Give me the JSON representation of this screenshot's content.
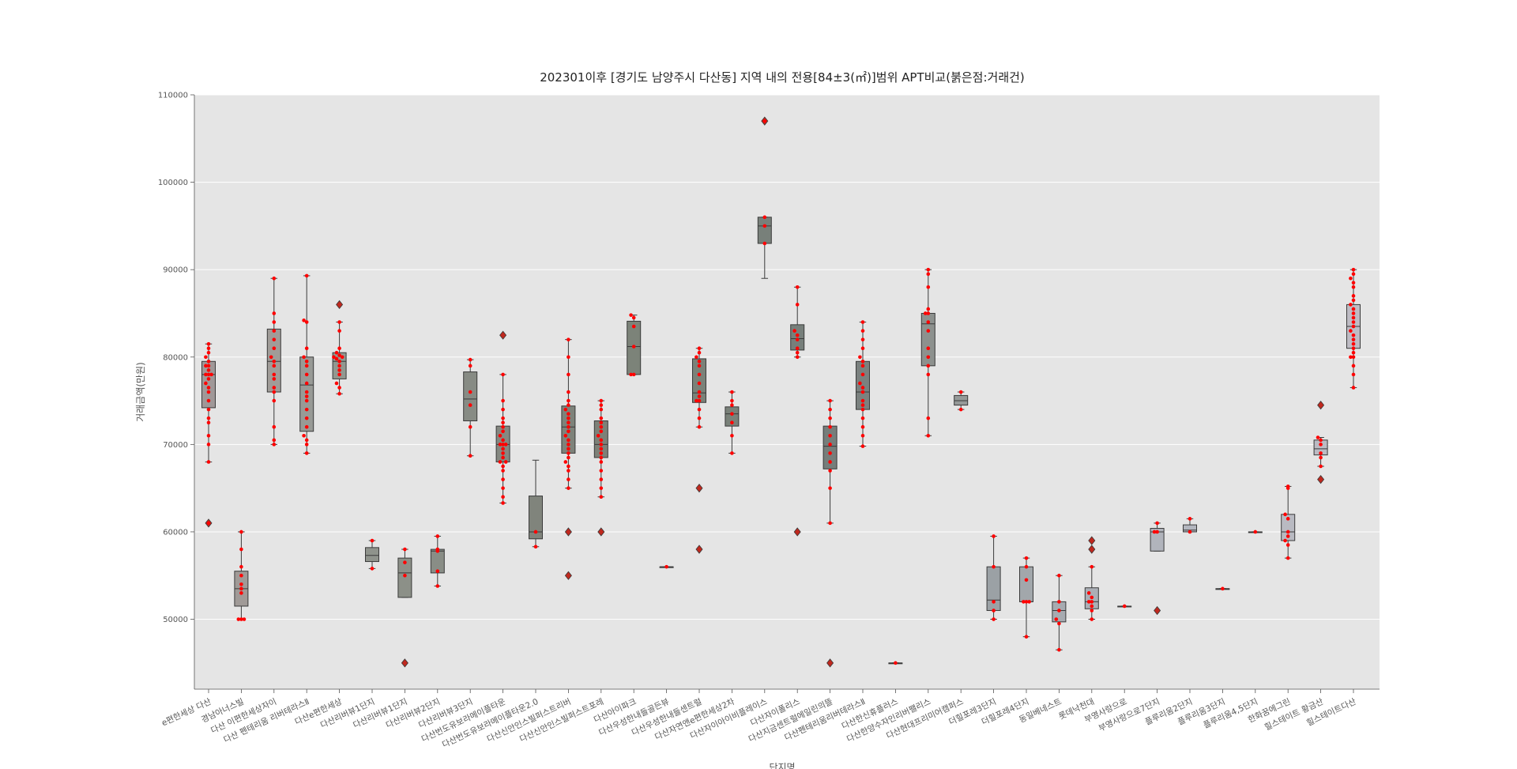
{
  "chart_data": {
    "type": "box",
    "title": "202301이후 [경기도 남양주시 다산동] 지역 내의 전용[84±3(㎡)]범위 APT비교(붉은점:거래건)",
    "xlabel": "단지명",
    "ylabel": "거래금액(만원)",
    "ylim": [
      42000,
      110000
    ],
    "yticks": [
      50000,
      60000,
      70000,
      80000,
      90000,
      100000,
      110000
    ],
    "ytick_labels": [
      "50000",
      "60000",
      "70000",
      "80000",
      "90000",
      "100000",
      "110000"
    ],
    "grid": true,
    "legend": "none",
    "categories": [
      {
        "name": "e편한세상 다산",
        "color": "#a09898",
        "box": {
          "whislo": 68000,
          "q1": 74200,
          "med": 78000,
          "q3": 79500,
          "whishi": 81500
        },
        "outliers": [
          61000
        ],
        "points": [
          68000,
          70000,
          71000,
          72500,
          73000,
          74000,
          75000,
          76000,
          76500,
          77000,
          77500,
          78000,
          78000,
          78000,
          78500,
          79000,
          79000,
          79500,
          80000,
          80500,
          81000,
          81500,
          61000
        ]
      },
      {
        "name": "경남아너스빌",
        "color": "#a09a97",
        "box": {
          "whislo": 50000,
          "q1": 51500,
          "med": 53500,
          "q3": 55500,
          "whishi": 60000
        },
        "outliers": [],
        "points": [
          50000,
          50000,
          50000,
          53000,
          53500,
          54000,
          55000,
          56000,
          58000,
          60000
        ]
      },
      {
        "name": "다산 이편한세상자이",
        "color": "#a09c98",
        "box": {
          "whislo": 70000,
          "q1": 76000,
          "med": 79500,
          "q3": 83200,
          "whishi": 89000
        },
        "outliers": [],
        "points": [
          70000,
          70500,
          72000,
          75000,
          76000,
          76500,
          77500,
          78000,
          79000,
          79500,
          80000,
          81000,
          82000,
          83000,
          84000,
          85000,
          89000
        ]
      },
      {
        "name": "다산 펜테리움 리버테라스Ⅱ",
        "color": "#989a96",
        "box": {
          "whislo": 69000,
          "q1": 71500,
          "med": 76800,
          "q3": 80000,
          "whishi": 89300
        },
        "outliers": [],
        "points": [
          69000,
          70000,
          70500,
          71000,
          72000,
          73000,
          74000,
          75000,
          75500,
          76000,
          77000,
          78000,
          79000,
          79500,
          80000,
          81000,
          84000,
          84200,
          89300
        ]
      },
      {
        "name": "다산e편한세상",
        "color": "#929890",
        "box": {
          "whislo": 75800,
          "q1": 77500,
          "med": 79500,
          "q3": 80500,
          "whishi": 84000
        },
        "outliers": [
          86000
        ],
        "points": [
          75800,
          76500,
          77000,
          78000,
          78500,
          79000,
          79500,
          79800,
          80000,
          80000,
          80200,
          80500,
          81000,
          83000,
          84000
        ]
      },
      {
        "name": "다산리버뷰1단지",
        "color": "#8f938c",
        "box": {
          "whislo": 55800,
          "q1": 56600,
          "med": 57300,
          "q3": 58200,
          "whishi": 59000
        },
        "outliers": [],
        "points": [
          55800,
          59000
        ]
      },
      {
        "name": "다산리버뷰1단지",
        "color": "#8c9088",
        "box": {
          "whislo": 52500,
          "q1": 52500,
          "med": 55300,
          "q3": 57000,
          "whishi": 58000
        },
        "outliers": [
          45000
        ],
        "points": [
          55000,
          56500,
          58000
        ]
      },
      {
        "name": "다산리버뷰2단지",
        "color": "#898d86",
        "box": {
          "whislo": 53800,
          "q1": 55300,
          "med": 57800,
          "q3": 58000,
          "whishi": 59500
        },
        "outliers": [],
        "points": [
          53800,
          55500,
          57800,
          58000,
          59500
        ]
      },
      {
        "name": "다산리버뷰3단지",
        "color": "#878b84",
        "box": {
          "whislo": 68700,
          "q1": 72700,
          "med": 75200,
          "q3": 78300,
          "whishi": 79700
        },
        "outliers": [],
        "points": [
          68700,
          72000,
          74500,
          76000,
          79000,
          79700
        ]
      },
      {
        "name": "다산번도유보라메이플타운",
        "color": "#858881",
        "box": {
          "whislo": 63300,
          "q1": 68000,
          "med": 70000,
          "q3": 72100,
          "whishi": 78000
        },
        "outliers": [
          82500
        ],
        "points": [
          63300,
          64000,
          65000,
          66000,
          67000,
          67500,
          68000,
          68000,
          68500,
          69000,
          69500,
          70000,
          70000,
          70000,
          70500,
          71000,
          71500,
          72000,
          72500,
          73000,
          74000,
          75000,
          78000
        ]
      },
      {
        "name": "다산번도유보라메이플타운2.0",
        "color": "#80847c",
        "box": {
          "whislo": 58300,
          "q1": 59200,
          "med": 60000,
          "q3": 64100,
          "whishi": 68200
        },
        "outliers": [],
        "points": [
          58300,
          60000
        ]
      },
      {
        "name": "다산신안인스빌퍼스트리버",
        "color": "#7e827a",
        "box": {
          "whislo": 65000,
          "q1": 69000,
          "med": 72000,
          "q3": 74400,
          "whishi": 82000
        },
        "outliers": [
          55000,
          60000
        ],
        "points": [
          65000,
          66000,
          67000,
          67500,
          68000,
          68500,
          69000,
          69500,
          70000,
          70500,
          71000,
          71500,
          72000,
          72500,
          73000,
          73500,
          74000,
          74500,
          75000,
          76000,
          78000,
          80000,
          82000
        ]
      },
      {
        "name": "다산신안인스빌퍼스트포레",
        "color": "#7d8178",
        "box": {
          "whislo": 64000,
          "q1": 68500,
          "med": 70000,
          "q3": 72700,
          "whishi": 75000
        },
        "outliers": [
          60000
        ],
        "points": [
          64000,
          65000,
          66000,
          67000,
          68000,
          68500,
          69000,
          69500,
          70000,
          70500,
          71000,
          71500,
          72000,
          72500,
          73000,
          74000,
          74500,
          75000
        ]
      },
      {
        "name": "다산아이파크",
        "color": "#7c8379",
        "box": {
          "whislo": 78000,
          "q1": 78000,
          "med": 81200,
          "q3": 84100,
          "whishi": 84800
        },
        "outliers": [],
        "points": [
          78000,
          78000,
          81200,
          83500,
          84500,
          84800
        ]
      },
      {
        "name": "다산우성한내들골든뷰",
        "color": "#7b8279",
        "box": {
          "whislo": 56000,
          "q1": 56000,
          "med": 56000,
          "q3": 56000,
          "whishi": 56000
        },
        "outliers": [],
        "points": [
          56000
        ]
      },
      {
        "name": "다산우성한내들센트럴",
        "color": "#7a8279",
        "box": {
          "whislo": 72000,
          "q1": 74800,
          "med": 75900,
          "q3": 79800,
          "whishi": 81000
        },
        "outliers": [
          58000,
          65000
        ],
        "points": [
          72000,
          73000,
          74000,
          75000,
          75000,
          75500,
          76000,
          77000,
          78000,
          79000,
          79500,
          80000,
          80500,
          81000
        ]
      },
      {
        "name": "다산자연앤e편한세상2차",
        "color": "#798179",
        "box": {
          "whislo": 69000,
          "q1": 72100,
          "med": 73500,
          "q3": 74300,
          "whishi": 76000
        },
        "outliers": [],
        "points": [
          69000,
          71000,
          72500,
          73500,
          74500,
          75000,
          76000
        ]
      },
      {
        "name": "다산자이아이비플레이스",
        "color": "#78807a",
        "box": {
          "whislo": 89000,
          "q1": 93000,
          "med": 95000,
          "q3": 96000,
          "whishi": 96000
        },
        "outliers": [
          107000
        ],
        "points": [
          93000,
          95000,
          96000,
          107000
        ]
      },
      {
        "name": "다산자이폴리스",
        "color": "#777f7b",
        "box": {
          "whislo": 80000,
          "q1": 80800,
          "med": 82100,
          "q3": 83700,
          "whishi": 88000
        },
        "outliers": [
          60000
        ],
        "points": [
          80000,
          80500,
          81000,
          82000,
          82500,
          83000,
          86000,
          88000
        ]
      },
      {
        "name": "다산지금센트럴에일린의뜰",
        "color": "#767e7b",
        "box": {
          "whislo": 61000,
          "q1": 67200,
          "med": 69800,
          "q3": 72100,
          "whishi": 75000
        },
        "outliers": [
          45000
        ],
        "points": [
          61000,
          65000,
          67000,
          68000,
          69000,
          70000,
          71000,
          72000,
          73000,
          74000,
          75000
        ]
      },
      {
        "name": "다산펜테리움리버테라스Ⅱ",
        "color": "#7b817f",
        "box": {
          "whislo": 69800,
          "q1": 74000,
          "med": 76000,
          "q3": 79500,
          "whishi": 84000
        },
        "outliers": [],
        "points": [
          69800,
          71000,
          72000,
          73000,
          74000,
          74500,
          75000,
          76000,
          76500,
          77000,
          78000,
          79000,
          79500,
          80000,
          81000,
          82000,
          83000,
          84000
        ]
      },
      {
        "name": "다산한신휴플러스",
        "color": "#858986",
        "box": {
          "whislo": 45000,
          "q1": 45000,
          "med": 45000,
          "q3": 45000,
          "whishi": 45000
        },
        "outliers": [],
        "points": [
          45000
        ]
      },
      {
        "name": "다산한양수자인리버팰리스",
        "color": "#8d918e",
        "box": {
          "whislo": 71000,
          "q1": 79000,
          "med": 83800,
          "q3": 85000,
          "whishi": 90000
        },
        "outliers": [],
        "points": [
          71000,
          73000,
          78000,
          79000,
          80000,
          81000,
          83000,
          84000,
          85000,
          85000,
          85500,
          88000,
          89500,
          90000
        ]
      },
      {
        "name": "다산현대프리미어캠퍼스",
        "color": "#959998",
        "box": {
          "whislo": 74000,
          "q1": 74500,
          "med": 75000,
          "q3": 75600,
          "whishi": 76000
        },
        "outliers": [],
        "points": [
          74000,
          76000
        ]
      },
      {
        "name": "더힐포레3단지",
        "color": "#9ba1a5",
        "box": {
          "whislo": 50000,
          "q1": 51000,
          "med": 52200,
          "q3": 56000,
          "whishi": 59500
        },
        "outliers": [],
        "points": [
          50000,
          51000,
          52000,
          56000,
          59500
        ]
      },
      {
        "name": "더힐포레4단지",
        "color": "#a2a7ab",
        "box": {
          "whislo": 48000,
          "q1": 52000,
          "med": 52000,
          "q3": 56000,
          "whishi": 57000
        },
        "outliers": [],
        "points": [
          48000,
          52000,
          52000,
          52000,
          54500,
          56000,
          57000
        ]
      },
      {
        "name": "동일베네스트",
        "color": "#a7abb1",
        "box": {
          "whislo": 46500,
          "q1": 49700,
          "med": 51000,
          "q3": 52000,
          "whishi": 55000
        },
        "outliers": [],
        "points": [
          46500,
          49500,
          50000,
          51000,
          52000,
          55000
        ]
      },
      {
        "name": "롯데낙천대",
        "color": "#abafb6",
        "box": {
          "whislo": 50000,
          "q1": 51200,
          "med": 52000,
          "q3": 53600,
          "whishi": 56000
        },
        "outliers": [
          58000,
          59000
        ],
        "points": [
          50000,
          51000,
          51500,
          52000,
          52000,
          52500,
          53000,
          56000
        ]
      },
      {
        "name": "부영사랑으로",
        "color": "#aeb2b9",
        "box": {
          "whislo": 51500,
          "q1": 51500,
          "med": 51500,
          "q3": 51500,
          "whishi": 51500
        },
        "outliers": [],
        "points": [
          51500
        ]
      },
      {
        "name": "부영사랑으로7단지",
        "color": "#b1b4bc",
        "box": {
          "whislo": 57800,
          "q1": 57800,
          "med": 60000,
          "q3": 60400,
          "whishi": 61000
        },
        "outliers": [
          51000
        ],
        "points": [
          60000,
          60000,
          61000
        ]
      },
      {
        "name": "플루리움2단지",
        "color": "#b3b6be",
        "box": {
          "whislo": 60000,
          "q1": 60000,
          "med": 60200,
          "q3": 60800,
          "whishi": 61500
        },
        "outliers": [],
        "points": [
          60000,
          61500
        ]
      },
      {
        "name": "플루리움3단지",
        "color": "#b5b8c0",
        "box": {
          "whislo": 53500,
          "q1": 53500,
          "med": 53500,
          "q3": 53500,
          "whishi": 53500
        },
        "outliers": [],
        "points": [
          53500
        ]
      },
      {
        "name": "플루리움4,5단지",
        "color": "#b7b9c1",
        "box": {
          "whislo": 60000,
          "q1": 60000,
          "med": 60000,
          "q3": 60000,
          "whishi": 60000
        },
        "outliers": [],
        "points": [
          60000
        ]
      },
      {
        "name": "한화꿈에그린",
        "color": "#b9bac2",
        "box": {
          "whislo": 57000,
          "q1": 59000,
          "med": 60000,
          "q3": 62000,
          "whishi": 65200
        },
        "outliers": [],
        "points": [
          57000,
          58500,
          59000,
          59500,
          60000,
          61500,
          62000,
          65000,
          65200
        ]
      },
      {
        "name": "힐스테이트 황금산",
        "color": "#bbbbc3",
        "box": {
          "whislo": 67500,
          "q1": 68800,
          "med": 69500,
          "q3": 70500,
          "whishi": 70800
        },
        "outliers": [
          66000,
          74500
        ],
        "points": [
          67500,
          68500,
          69000,
          70000,
          70500,
          70800
        ]
      },
      {
        "name": "힐스테이트다산",
        "color": "#bebcc4",
        "box": {
          "whislo": 76500,
          "q1": 81000,
          "med": 83500,
          "q3": 86000,
          "whishi": 90000
        },
        "outliers": [],
        "points": [
          76500,
          78000,
          79000,
          80000,
          80000,
          80500,
          81000,
          81500,
          82000,
          82500,
          83000,
          83500,
          84000,
          84500,
          85000,
          85500,
          86000,
          86500,
          87000,
          88000,
          88500,
          89000,
          89500,
          90000
        ]
      }
    ]
  }
}
